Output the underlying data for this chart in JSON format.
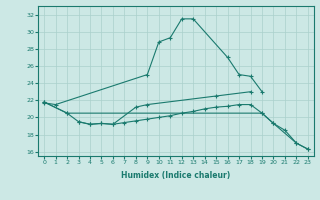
{
  "xlabel": "Humidex (Indice chaleur)",
  "background_color": "#cce8e5",
  "grid_color": "#aad0cc",
  "line_color": "#1a7a6e",
  "xlim": [
    -0.5,
    23.5
  ],
  "ylim": [
    15.5,
    33.0
  ],
  "yticks": [
    16,
    18,
    20,
    22,
    24,
    26,
    28,
    30,
    32
  ],
  "xticks": [
    0,
    1,
    2,
    3,
    4,
    5,
    6,
    7,
    8,
    9,
    10,
    11,
    12,
    13,
    14,
    15,
    16,
    17,
    18,
    19,
    20,
    21,
    22,
    23
  ],
  "line1_x": [
    0,
    1,
    9,
    10,
    11,
    12,
    13,
    16,
    17,
    18,
    19
  ],
  "line1_y": [
    21.7,
    21.5,
    25.0,
    28.8,
    29.3,
    31.5,
    31.5,
    27.0,
    25.0,
    24.8,
    23.0
  ],
  "line2_x": [
    0,
    2,
    3,
    4,
    5,
    6,
    8,
    9,
    15,
    18
  ],
  "line2_y": [
    21.8,
    20.5,
    19.5,
    19.2,
    19.3,
    19.2,
    21.2,
    21.5,
    22.5,
    23.0
  ],
  "line3_x": [
    0,
    2,
    19,
    20,
    22,
    23
  ],
  "line3_y": [
    21.8,
    20.5,
    20.5,
    19.3,
    17.0,
    16.3
  ],
  "line4_x": [
    3,
    4,
    5,
    6,
    7,
    8,
    9,
    10,
    11,
    12,
    13,
    14,
    15,
    16,
    17,
    18,
    19,
    20,
    21,
    22,
    23
  ],
  "line4_y": [
    19.5,
    19.2,
    19.3,
    19.2,
    19.4,
    19.6,
    19.8,
    20.0,
    20.2,
    20.5,
    20.7,
    21.0,
    21.2,
    21.3,
    21.5,
    21.5,
    20.5,
    19.3,
    18.5,
    17.0,
    16.3
  ]
}
